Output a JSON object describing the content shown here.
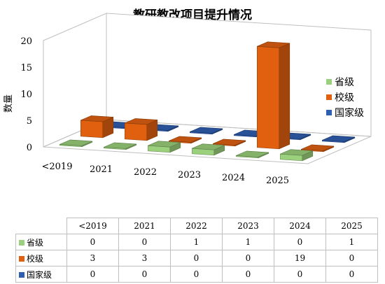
{
  "chart_data": {
    "type": "bar",
    "title": "教研教改项目提升情况",
    "ylabel": "数量",
    "ylim": [
      0,
      20
    ],
    "yticks": [
      0,
      5,
      10,
      15,
      20
    ],
    "categories": [
      "<2019",
      "2021",
      "2022",
      "2023",
      "2024",
      "2025"
    ],
    "series": [
      {
        "name": "省级",
        "values": [
          0,
          0,
          1,
          1,
          0,
          1
        ],
        "color": "#9bd17c"
      },
      {
        "name": "校级",
        "values": [
          3,
          3,
          0,
          0,
          19,
          0
        ],
        "color": "#e06010"
      },
      {
        "name": "国家级",
        "values": [
          0,
          0,
          0,
          0,
          0,
          0
        ],
        "color": "#2f5fb3"
      }
    ],
    "legend_position": "right",
    "grid": false,
    "data_table": true
  }
}
